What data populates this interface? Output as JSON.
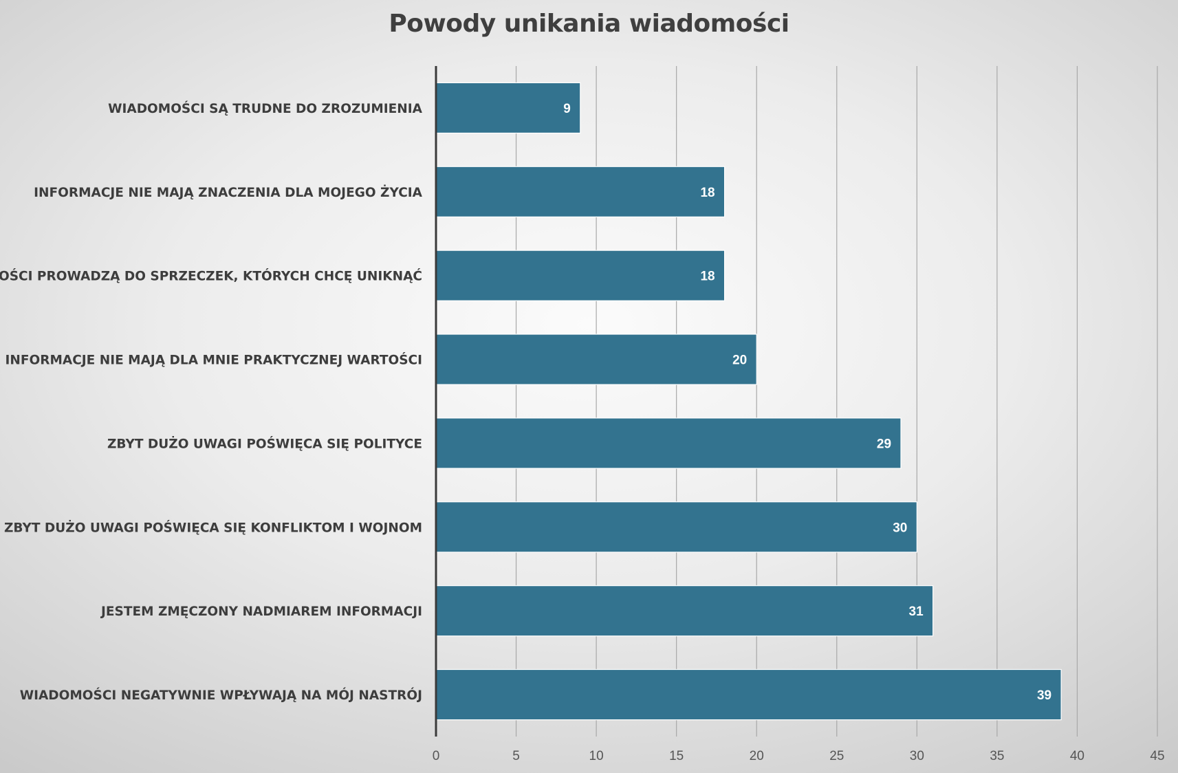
{
  "chart_data": {
    "type": "bar",
    "orientation": "horizontal",
    "title": "Powody unikania wiadomości",
    "categories": [
      "WIADOMOŚCI SĄ TRUDNE DO ZROZUMIENIA",
      "INFORMACJE NIE MAJĄ ZNACZENIA DLA MOJEGO ŻYCIA",
      "WIADOMOŚCI PROWADZĄ DO SPRZECZEK, KTÓRYCH CHCĘ UNIKNĄĆ",
      "INFORMACJE NIE MAJĄ DLA MNIE PRAKTYCZNEJ WARTOŚCI",
      "ZBYT DUŻO UWAGI POŚWIĘCA SIĘ POLITYCE",
      "ZBYT DUŻO UWAGI POŚWIĘCA SIĘ KONFLIKTOM I WOJNOM",
      "JESTEM ZMĘCZONY NADMIAREM INFORMACJI",
      "WIADOMOŚCI NEGATYWNIE WPŁYWAJĄ NA MÓJ NASTRÓJ"
    ],
    "values": [
      9,
      18,
      18,
      20,
      29,
      30,
      31,
      39
    ],
    "xlim": [
      0,
      45
    ],
    "xticks": [
      0,
      5,
      10,
      15,
      20,
      25,
      30,
      35,
      40,
      45
    ],
    "xlabel": "",
    "ylabel": "",
    "grid": "vertical",
    "legend": "none",
    "data_labels": "inside-end",
    "colors": {
      "bar": "#33738f",
      "bar_edge": "#ffffff",
      "grid": "#a8a8a8",
      "axis": "#3a3a3a",
      "title": "#3f3f3f"
    }
  }
}
